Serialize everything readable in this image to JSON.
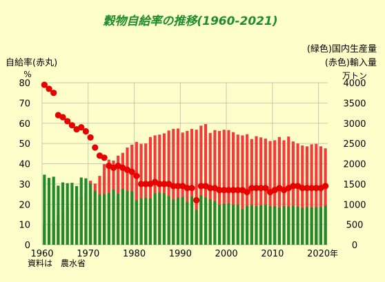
{
  "chart_data": {
    "type": "bar",
    "title": "穀物自給率の推移(1960-2021)",
    "left_axis": {
      "label": "自給率(赤丸)",
      "unit": "%",
      "ylim": [
        0,
        80
      ],
      "ticks": [
        "0",
        "10",
        "20",
        "30",
        "40",
        "50",
        "60",
        "70",
        "80"
      ]
    },
    "right_axis": {
      "label_line1": "(緑色)国内生産量",
      "label_line2": "(赤色)輸入量",
      "unit": "万トン",
      "ylim": [
        0,
        4000
      ],
      "ticks": [
        "0",
        "500",
        "1000",
        "1500",
        "2000",
        "2500",
        "3000",
        "3500",
        "4000"
      ]
    },
    "x_ticks": [
      "1960",
      "1970",
      "1980",
      "1990",
      "2000",
      "2010",
      "2020"
    ],
    "x_unit": "年",
    "source": "資料は　農水省",
    "years": [
      1960,
      1961,
      1962,
      1963,
      1964,
      1965,
      1966,
      1967,
      1968,
      1969,
      1970,
      1971,
      1972,
      1973,
      1974,
      1975,
      1976,
      1977,
      1978,
      1979,
      1980,
      1981,
      1982,
      1983,
      1984,
      1985,
      1986,
      1987,
      1988,
      1989,
      1990,
      1991,
      1992,
      1993,
      1994,
      1995,
      1996,
      1997,
      1998,
      1999,
      2000,
      2001,
      2002,
      2003,
      2004,
      2005,
      2006,
      2007,
      2008,
      2009,
      2010,
      2011,
      2012,
      2013,
      2014,
      2015,
      2016,
      2017,
      2018,
      2019,
      2020,
      2021
    ],
    "series": [
      {
        "name": "国内生産量",
        "color": "#1f8a2a",
        "values": [
          1730,
          1650,
          1680,
          1460,
          1540,
          1520,
          1530,
          1450,
          1660,
          1640,
          1510,
          1330,
          1240,
          1250,
          1280,
          1360,
          1260,
          1380,
          1330,
          1320,
          1100,
          1150,
          1160,
          1150,
          1270,
          1290,
          1270,
          1200,
          1120,
          1160,
          1180,
          1060,
          1190,
          860,
          1220,
          1170,
          1120,
          1080,
          990,
          1010,
          1020,
          990,
          990,
          880,
          960,
          980,
          950,
          970,
          990,
          950,
          950,
          920,
          950,
          940,
          960,
          940,
          910,
          930,
          920,
          930,
          930,
          970
        ]
      },
      {
        "name": "輸入量",
        "color": "#f23a3a",
        "values": [
          480,
          520,
          560,
          750,
          820,
          930,
          1060,
          1180,
          1180,
          1280,
          1580,
          1510,
          1700,
          1990,
          2100,
          2080,
          2200,
          2270,
          2400,
          2470,
          2540,
          2490,
          2500,
          2660,
          2700,
          2720,
          2750,
          2820,
          2860,
          2870,
          2770,
          2810,
          2860,
          2840,
          2940,
          2980,
          2760,
          2830,
          2810,
          2840,
          2830,
          2780,
          2720,
          2700,
          2730,
          2610,
          2680,
          2650,
          2620,
          2560,
          2580,
          2660,
          2580,
          2670,
          2550,
          2500,
          2450,
          2430,
          2480,
          2490,
          2430,
          2380
        ]
      },
      {
        "name": "自給率",
        "color": "#e60000",
        "values": [
          79,
          77,
          75,
          64,
          63,
          61,
          59,
          57,
          58,
          56,
          53,
          48,
          44,
          43,
          39,
          38,
          39,
          38,
          37,
          36,
          34,
          30,
          30,
          30,
          31,
          30,
          30,
          30,
          29,
          29,
          29,
          28,
          28,
          22,
          29,
          29,
          28,
          28,
          27,
          27,
          27,
          27,
          27,
          27,
          26,
          28,
          28,
          28,
          28,
          26,
          27,
          28,
          27,
          28,
          29,
          29,
          28,
          28,
          28,
          28,
          28,
          29
        ]
      }
    ]
  }
}
